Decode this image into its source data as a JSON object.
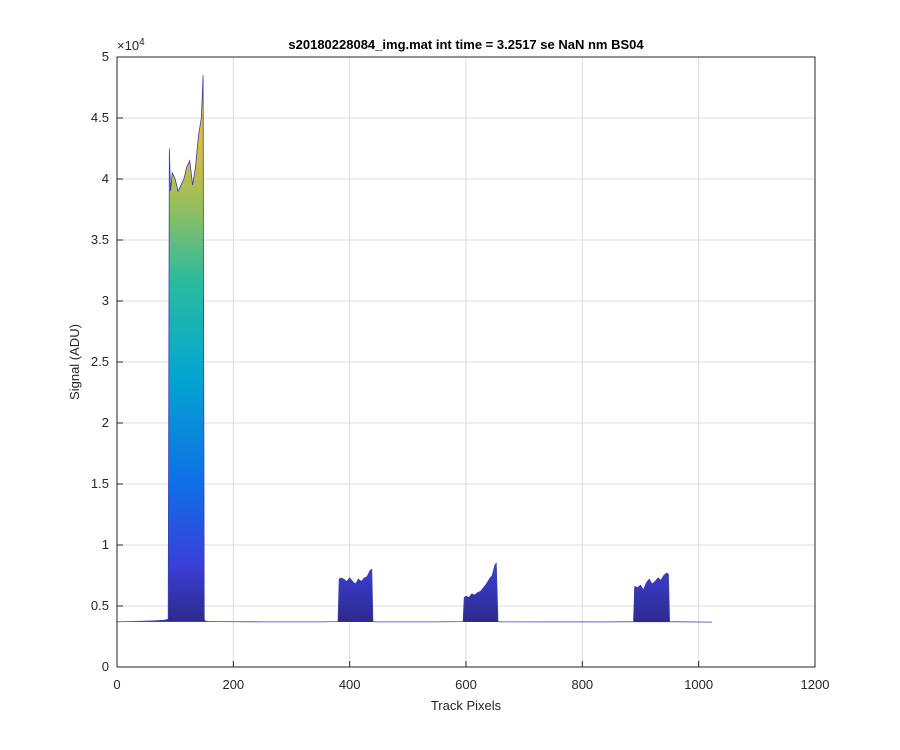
{
  "chart_data": {
    "type": "area",
    "title": "s20180228084_img.mat int time = 3.2517 se  NaN nm BS04",
    "xlabel": "Track Pixels",
    "ylabel": "Signal (ADU)",
    "xlim": [
      0,
      1200
    ],
    "ylim": [
      0,
      50000
    ],
    "x_ticks": [
      0,
      200,
      400,
      600,
      800,
      1000,
      1200
    ],
    "x_tick_labels": [
      "0",
      "200",
      "400",
      "600",
      "800",
      "1000",
      "1200"
    ],
    "y_ticks": [
      0,
      5000,
      10000,
      15000,
      20000,
      25000,
      30000,
      35000,
      40000,
      45000,
      50000
    ],
    "y_tick_labels": [
      "0",
      "0.5",
      "1",
      "1.5",
      "2",
      "2.5",
      "3",
      "3.5",
      "4",
      "4.5",
      "5"
    ],
    "y_exponent_label": "×10",
    "y_exponent_power": "4",
    "grid": true,
    "colormap": "parula",
    "series": [
      {
        "x": [
          0,
          20,
          40,
          60,
          80,
          88,
          90,
          92,
          95,
          100,
          105,
          110,
          115,
          120,
          125,
          130,
          135,
          140,
          145,
          148,
          150,
          152,
          155,
          160,
          200,
          250,
          300,
          350,
          380,
          382,
          385,
          390,
          395,
          400,
          405,
          410,
          415,
          420,
          425,
          430,
          435,
          438,
          440,
          445,
          500,
          550,
          595,
          597,
          600,
          605,
          610,
          615,
          620,
          625,
          630,
          635,
          640,
          645,
          650,
          652,
          655,
          660,
          700,
          750,
          800,
          850,
          888,
          890,
          895,
          900,
          905,
          910,
          915,
          920,
          925,
          930,
          935,
          940,
          945,
          948,
          950,
          1000,
          1023
        ],
        "y": [
          3700,
          3720,
          3750,
          3780,
          3830,
          3900,
          42500,
          39000,
          40500,
          40000,
          39000,
          39500,
          40000,
          41000,
          41500,
          39500,
          41000,
          43500,
          45000,
          48500,
          3900,
          3760,
          3740,
          3730,
          3710,
          3700,
          3700,
          3700,
          3720,
          7200,
          7300,
          7200,
          7000,
          7300,
          7000,
          6800,
          7200,
          7000,
          7300,
          7400,
          7900,
          8000,
          3720,
          3700,
          3700,
          3700,
          3720,
          5700,
          5800,
          5700,
          6000,
          5900,
          6100,
          6200,
          6500,
          6800,
          7200,
          7500,
          8400,
          8500,
          3720,
          3700,
          3700,
          3700,
          3700,
          3700,
          3720,
          6600,
          6500,
          6700,
          6300,
          6900,
          7200,
          6800,
          7000,
          7300,
          7100,
          7500,
          7700,
          7600,
          3720,
          3690,
          3680
        ]
      }
    ]
  }
}
